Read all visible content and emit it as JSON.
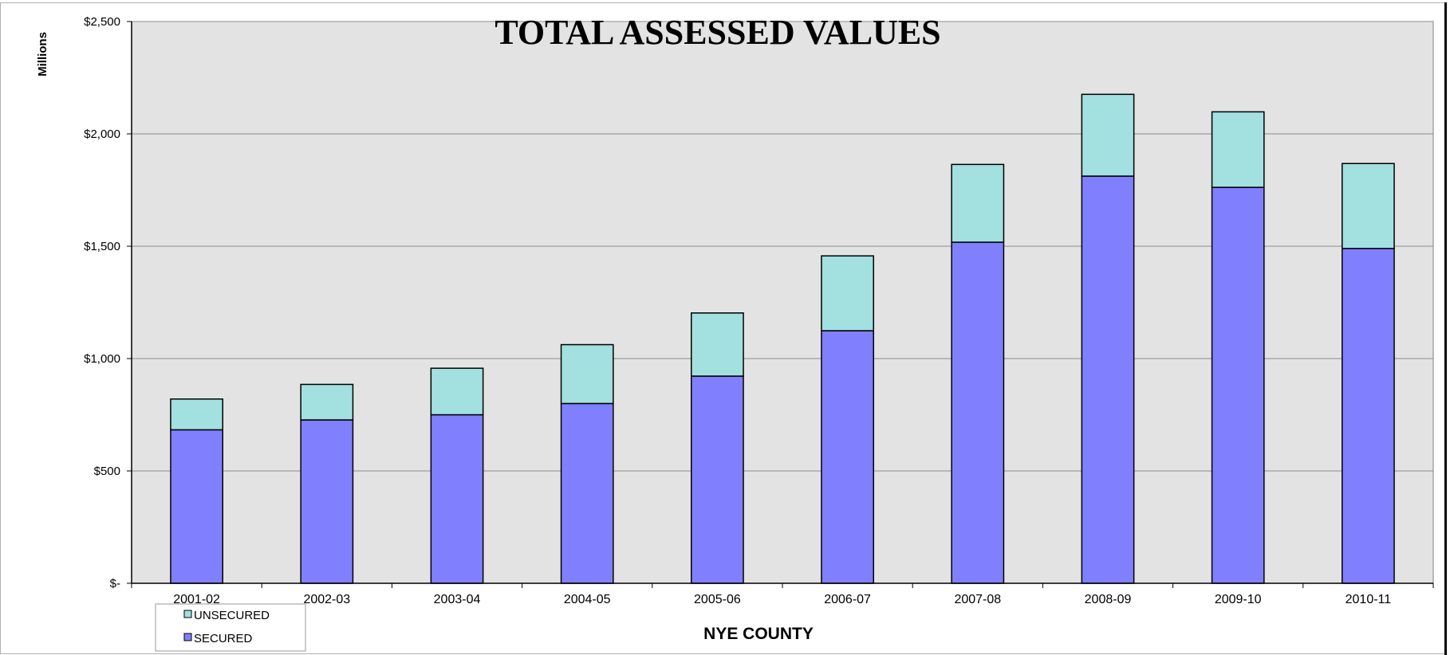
{
  "chart_data": {
    "type": "bar",
    "stacked": true,
    "title": "TOTAL ASSESSED VALUES",
    "xlabel": "NYE COUNTY",
    "ylabel": "Millions",
    "ylim": [
      0,
      2500
    ],
    "yticks": [
      {
        "value": 0,
        "label": "$-"
      },
      {
        "value": 500,
        "label": "$500"
      },
      {
        "value": 1000,
        "label": "$1,000"
      },
      {
        "value": 1500,
        "label": "$1,500"
      },
      {
        "value": 2000,
        "label": "$2,000"
      },
      {
        "value": 2500,
        "label": "$2,500"
      }
    ],
    "grid": true,
    "categories": [
      "2001-02",
      "2002-03",
      "2003-04",
      "2004-05",
      "2005-06",
      "2006-07",
      "2007-08",
      "2008-09",
      "2009-10",
      "2010-11"
    ],
    "series": [
      {
        "name": "SECURED",
        "color": "#8080ff",
        "values": [
          683,
          727,
          750,
          800,
          922,
          1124,
          1518,
          1812,
          1762,
          1490
        ]
      },
      {
        "name": "UNSECURED",
        "color": "#a3e0e0",
        "values": [
          137,
          158,
          207,
          262,
          281,
          333,
          346,
          364,
          336,
          378
        ]
      }
    ],
    "legend": {
      "placement": "bottom-left",
      "entries": [
        {
          "label": "UNSECURED",
          "color": "#a3e0e0"
        },
        {
          "label": "SECURED",
          "color": "#8080ff"
        }
      ]
    },
    "plot_background": "#e3e3e3"
  }
}
